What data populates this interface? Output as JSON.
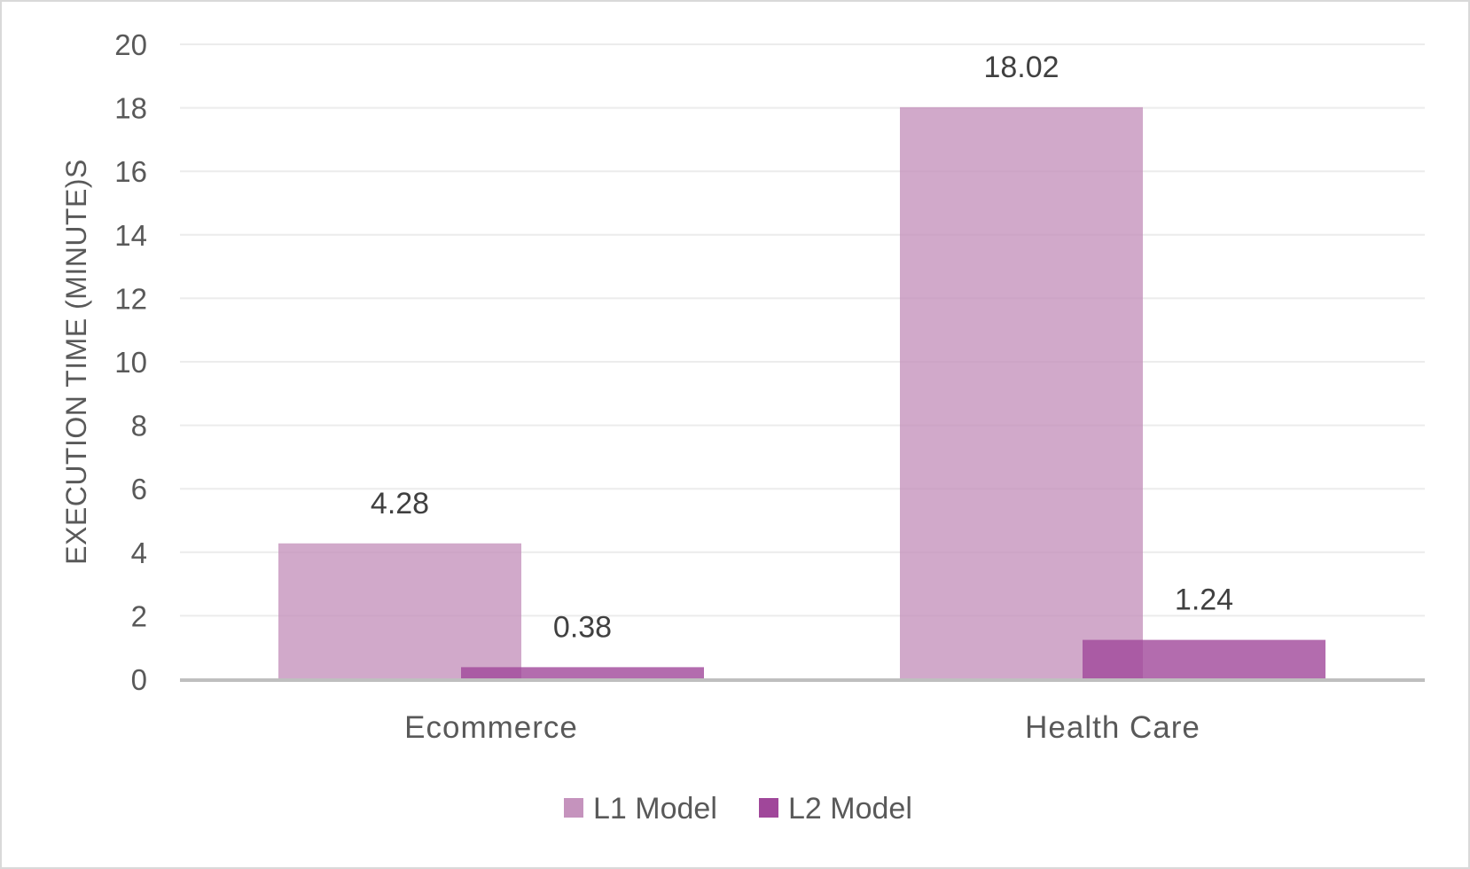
{
  "chart_data": {
    "type": "bar",
    "categories": [
      "Ecommerce",
      "Health Care"
    ],
    "series": [
      {
        "name": "L1 Model",
        "values": [
          4.28,
          18.02
        ],
        "color": "#c593bd"
      },
      {
        "name": "L2 Model",
        "values": [
          0.38,
          1.24
        ],
        "color": "#a0479a"
      }
    ],
    "data_labels": [
      [
        "4.28",
        "18.02"
      ],
      [
        "0.38",
        "1.24"
      ]
    ],
    "ylabel": "EXECUTION TIME  (MINUTE)S",
    "ylim": [
      0,
      20
    ],
    "yticks": [
      0,
      2,
      4,
      6,
      8,
      10,
      12,
      14,
      16,
      18,
      20
    ],
    "grid": true,
    "legend_position": "bottom",
    "bar_overlap": true
  }
}
